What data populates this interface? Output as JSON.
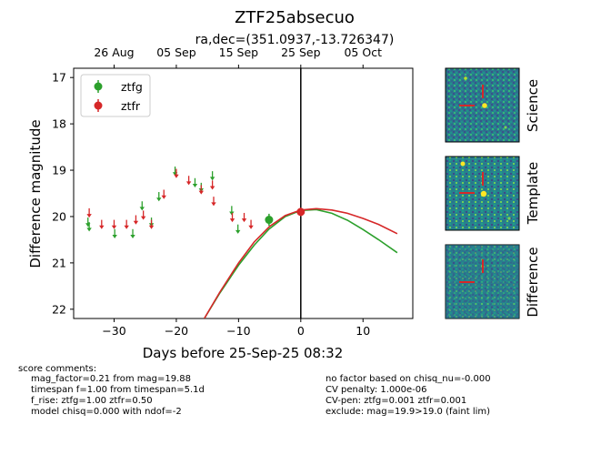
{
  "chart_data": {
    "type": "scatter",
    "title": "ZTF25absecuo",
    "subtitle": "ra,dec=(351.0937,-13.726347)",
    "xlabel": "Days before 25-Sep-25 08:32",
    "ylabel": "Difference magnitude",
    "xlim": [
      -36.5,
      18
    ],
    "ylim": [
      22.2,
      16.8
    ],
    "x_ticks": [
      -30,
      -20,
      -10,
      0,
      10
    ],
    "y_ticks": [
      17,
      18,
      19,
      20,
      21,
      22
    ],
    "top_axis": {
      "labels": [
        "26 Aug",
        "05 Sep",
        "15 Sep",
        "25 Sep",
        "05 Oct"
      ],
      "positions": [
        -30,
        -20,
        -10,
        0,
        10
      ]
    },
    "reference_line_x": 0,
    "legend": {
      "placement": "top-left"
    },
    "series": [
      {
        "name": "ztfg",
        "color": "#2ca02c",
        "detections": [
          {
            "x": -5.1,
            "y": 20.07,
            "err": 0.13
          }
        ],
        "upper_limits": [
          {
            "x": -34.2,
            "y": 20.1
          },
          {
            "x": -34.0,
            "y": 20.2
          },
          {
            "x": -29.9,
            "y": 20.35
          },
          {
            "x": -27.0,
            "y": 20.35
          },
          {
            "x": -25.5,
            "y": 19.75
          },
          {
            "x": -24.0,
            "y": 20.1
          },
          {
            "x": -22.8,
            "y": 19.55
          },
          {
            "x": -20.2,
            "y": 19.0
          },
          {
            "x": -17.0,
            "y": 19.25
          },
          {
            "x": -16.0,
            "y": 19.35
          },
          {
            "x": -14.2,
            "y": 19.1
          },
          {
            "x": -11.1,
            "y": 19.85
          },
          {
            "x": -10.1,
            "y": 20.25
          }
        ],
        "model_curve": [
          [
            -15.5,
            22.2
          ],
          [
            -13.0,
            21.65
          ],
          [
            -10.0,
            21.05
          ],
          [
            -7.5,
            20.62
          ],
          [
            -5.1,
            20.27
          ],
          [
            -2.5,
            20.0
          ],
          [
            0.0,
            19.87
          ],
          [
            2.5,
            19.85
          ],
          [
            5.0,
            19.93
          ],
          [
            7.5,
            20.08
          ],
          [
            10.0,
            20.28
          ],
          [
            12.5,
            20.5
          ],
          [
            15.5,
            20.78
          ]
        ]
      },
      {
        "name": "ztfr",
        "color": "#d62728",
        "detections": [
          {
            "x": 0.0,
            "y": 19.9,
            "err": 0.09
          }
        ],
        "upper_limits": [
          {
            "x": -34.0,
            "y": 19.9
          },
          {
            "x": -32.0,
            "y": 20.15
          },
          {
            "x": -30.0,
            "y": 20.15
          },
          {
            "x": -28.0,
            "y": 20.15
          },
          {
            "x": -26.5,
            "y": 20.05
          },
          {
            "x": -25.3,
            "y": 19.95
          },
          {
            "x": -24.0,
            "y": 20.15
          },
          {
            "x": -22.0,
            "y": 19.5
          },
          {
            "x": -20.0,
            "y": 19.05
          },
          {
            "x": -18.0,
            "y": 19.2
          },
          {
            "x": -16.0,
            "y": 19.4
          },
          {
            "x": -14.2,
            "y": 19.3
          },
          {
            "x": -14.0,
            "y": 19.65
          },
          {
            "x": -11.0,
            "y": 20.0
          },
          {
            "x": -9.1,
            "y": 20.0
          },
          {
            "x": -8.0,
            "y": 20.15
          }
        ],
        "model_curve": [
          [
            -15.5,
            22.2
          ],
          [
            -13.0,
            21.63
          ],
          [
            -10.0,
            21.0
          ],
          [
            -7.5,
            20.55
          ],
          [
            -5.0,
            20.21
          ],
          [
            -2.5,
            19.98
          ],
          [
            0.0,
            19.86
          ],
          [
            2.5,
            19.83
          ],
          [
            5.0,
            19.86
          ],
          [
            7.5,
            19.93
          ],
          [
            10.0,
            20.04
          ],
          [
            12.5,
            20.17
          ],
          [
            15.5,
            20.37
          ]
        ]
      }
    ]
  },
  "panels": [
    {
      "label": "Science"
    },
    {
      "label": "Template"
    },
    {
      "label": "Difference"
    }
  ],
  "comments": {
    "header": "score comments:",
    "left": [
      "mag_factor=0.21 from mag=19.88",
      "timespan f=1.00 from timespan=5.1d",
      "f_rise: ztfg=1.00 ztfr=0.50",
      "model chisq=0.000 with ndof=-2"
    ],
    "right": [
      "no factor based on chisq_nu=-0.000",
      "CV penalty: 1.000e-06",
      "CV-pen: ztfg=0.001 ztfr=0.001",
      "exclude: mag=19.9>19.0 (faint lim)"
    ]
  }
}
